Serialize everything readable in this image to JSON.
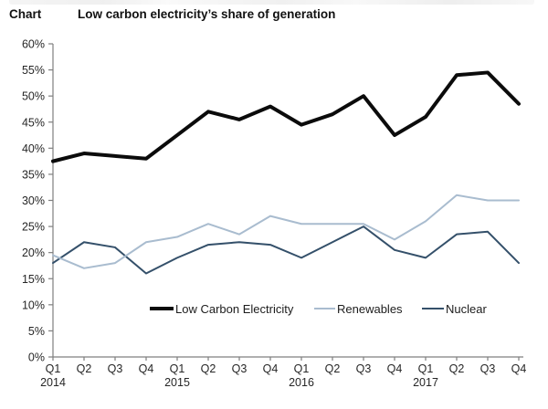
{
  "header": {
    "kicker": "Chart",
    "title": "Low carbon electricity’s share of generation"
  },
  "chart_data": {
    "type": "line",
    "title": "Low carbon electricity’s share of generation",
    "xlabel": "",
    "ylabel": "",
    "ylim": [
      0,
      60
    ],
    "grid": false,
    "legend_position": "bottom-inside",
    "y_ticks": [
      "0%",
      "5%",
      "10%",
      "15%",
      "20%",
      "25%",
      "30%",
      "35%",
      "40%",
      "45%",
      "50%",
      "55%",
      "60%"
    ],
    "x_labels": [
      {
        "quarter": "Q1",
        "year": "2014"
      },
      {
        "quarter": "Q2"
      },
      {
        "quarter": "Q3"
      },
      {
        "quarter": "Q4"
      },
      {
        "quarter": "Q1",
        "year": "2015"
      },
      {
        "quarter": "Q2"
      },
      {
        "quarter": "Q3"
      },
      {
        "quarter": "Q4"
      },
      {
        "quarter": "Q1",
        "year": "2016"
      },
      {
        "quarter": "Q2"
      },
      {
        "quarter": "Q3"
      },
      {
        "quarter": "Q4"
      },
      {
        "quarter": "Q1",
        "year": "2017"
      },
      {
        "quarter": "Q2"
      },
      {
        "quarter": "Q3"
      },
      {
        "quarter": "Q4"
      }
    ],
    "series": [
      {
        "name": "Low Carbon Electricity",
        "color": "#0b0b0b",
        "line_width": 4,
        "values": [
          37.5,
          39,
          38.5,
          38,
          42.5,
          47,
          45.5,
          48,
          44.5,
          46.5,
          50,
          42.5,
          46,
          54,
          54.5,
          48.5
        ]
      },
      {
        "name": "Renewables",
        "color": "#a9bccf",
        "line_width": 2,
        "values": [
          19.5,
          17,
          18,
          22,
          23,
          25.5,
          23.5,
          27,
          25.5,
          25.5,
          25.5,
          22.5,
          26,
          31,
          30,
          30
        ]
      },
      {
        "name": "Nuclear",
        "color": "#34506a",
        "line_width": 2,
        "values": [
          18,
          22,
          21,
          16,
          19,
          21.5,
          22,
          21.5,
          19,
          22,
          25,
          20.5,
          19,
          23.5,
          24,
          18
        ]
      }
    ]
  }
}
